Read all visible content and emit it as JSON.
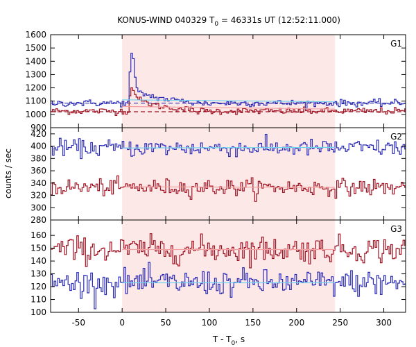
{
  "title_main": "KONUS-WIND 040329 T",
  "title_sub": "0",
  "title_tail": " = 46331s UT (12:52:11.000)",
  "xlabel_main": "T - T",
  "xlabel_sub": "0",
  "xlabel_tail": ", s",
  "ylabel": "counts / sec",
  "colors": {
    "blue_series": "#2a2ab8",
    "red_series": "#a01020",
    "bg_fit_blue": "#6fd3f0",
    "bg_fit_red": "#f2a0a0",
    "highlight": "#fde8e8",
    "frame": "#000000"
  },
  "chart_data": {
    "type": "line",
    "xlim": [
      -82,
      325
    ],
    "xticks": [
      "-50",
      "0",
      "50",
      "100",
      "150",
      "200",
      "250",
      "300"
    ],
    "xtick_values": [
      -50,
      0,
      50,
      100,
      150,
      200,
      250,
      300
    ],
    "highlight_interval": [
      0,
      244
    ],
    "panels": [
      {
        "label": "G1",
        "ylim": [
          900,
          1600
        ],
        "yticks": [
          "900",
          "1000",
          "1100",
          "1200",
          "1300",
          "1400",
          "1500",
          "1600"
        ],
        "ytick_values": [
          900,
          1000,
          1100,
          1200,
          1300,
          1400,
          1500,
          1600
        ],
        "blue_level": 1085,
        "red_level": 1025,
        "blue_fit_segment": {
          "x": [
            0,
            244
          ],
          "y": [
            1110,
            1095
          ]
        },
        "red_fit_segment": {
          "x": [
            0,
            244
          ],
          "y": [
            1060,
            1040
          ]
        },
        "dashed_bg_blue": 1085,
        "dashed_bg_red": 1020,
        "blue_peak": {
          "x": [
            8,
            10,
            12,
            14,
            16,
            18
          ],
          "y": [
            1320,
            1460,
            1420,
            1280,
            1200,
            1170
          ]
        },
        "red_peak": {
          "x": [
            8,
            10,
            12,
            14,
            16,
            18
          ],
          "y": [
            1140,
            1200,
            1180,
            1150,
            1130,
            1110
          ]
        }
      },
      {
        "label": "G2",
        "ylim": [
          280,
          430
        ],
        "yticks": [
          "280",
          "300",
          "320",
          "340",
          "360",
          "380",
          "400",
          "420"
        ],
        "ytick_values": [
          280,
          300,
          320,
          340,
          360,
          380,
          400,
          420
        ],
        "blue_level": 397,
        "red_level": 333,
        "blue_fit_segment": {
          "x": [
            0,
            244
          ],
          "y": [
            397,
            398
          ]
        },
        "red_fit_segment": {
          "x": [
            0,
            244
          ],
          "y": [
            334,
            333
          ]
        }
      },
      {
        "label": "G3",
        "ylim": [
          100,
          172
        ],
        "yticks": [
          "100",
          "110",
          "120",
          "130",
          "140",
          "150",
          "160"
        ],
        "ytick_values": [
          100,
          110,
          120,
          130,
          140,
          150,
          160
        ],
        "blue_level": 123,
        "red_level": 149,
        "blue_fit_segment": {
          "x": [
            0,
            244
          ],
          "y": [
            123,
            123
          ]
        },
        "red_fit_segment": {
          "x": [
            0,
            244
          ],
          "y": [
            149,
            149
          ]
        }
      }
    ]
  }
}
